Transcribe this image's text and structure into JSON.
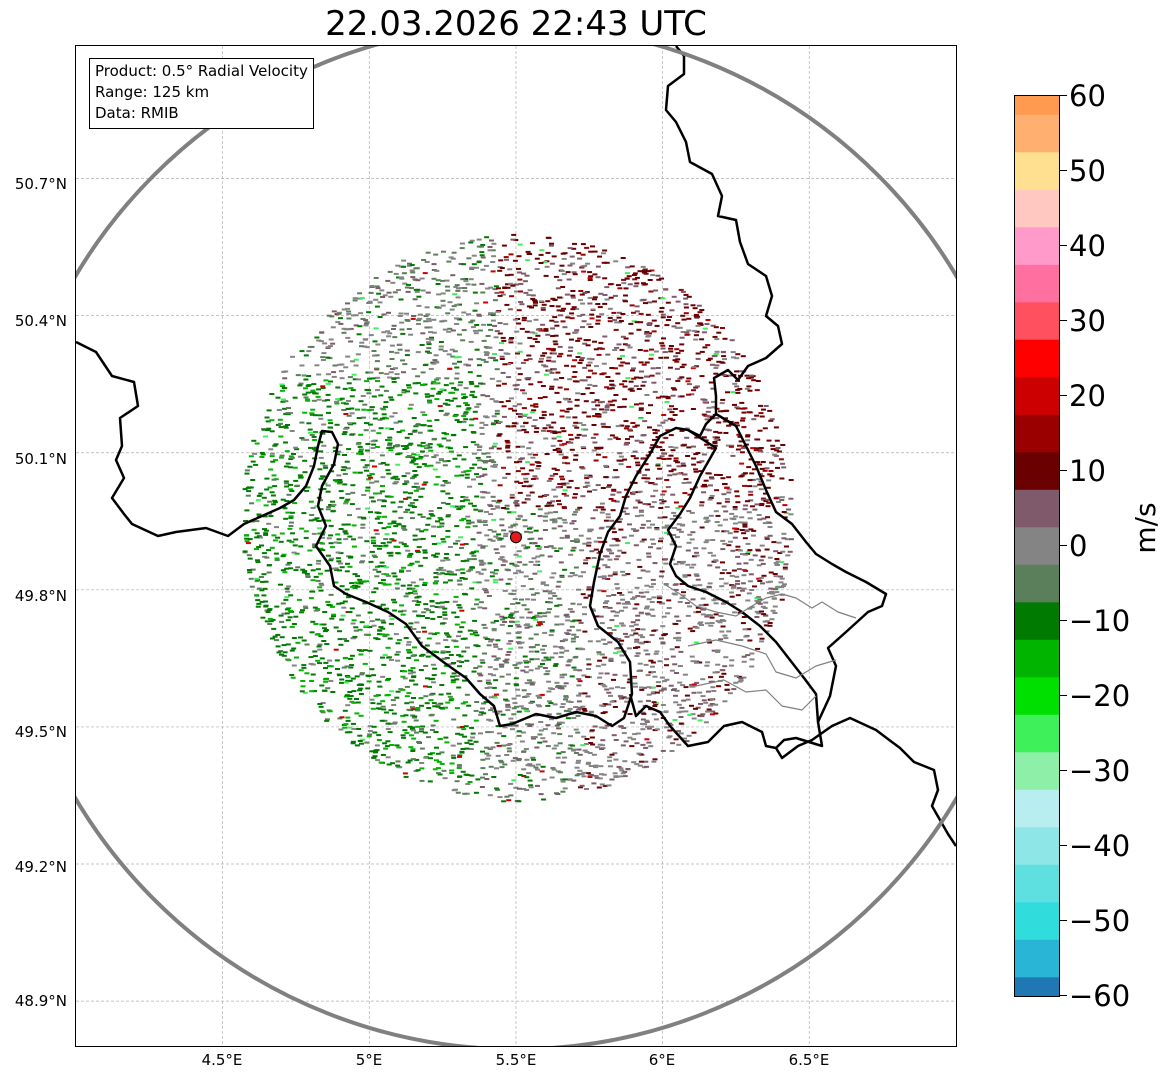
{
  "title": "22.03.2026 22:43 UTC",
  "info_box": {
    "product": "Product: 0.5° Radial Velocity",
    "range": "Range: 125 km",
    "data": "Data: RMIB"
  },
  "map": {
    "lat_labels": [
      "50.7°N",
      "50.4°N",
      "50.1°N",
      "49.8°N",
      "49.5°N",
      "49.2°N",
      "48.9°N"
    ],
    "lon_labels": [
      "4.5°E",
      "5°E",
      "5.5°E",
      "6°E",
      "6.5°E"
    ],
    "radar_site": {
      "lon": 5.5,
      "lat": 49.915
    },
    "range_ring_color": "#808080",
    "border_color": "#000000",
    "gridline_color": "#b0b0b0",
    "radar_marker_color": "#e41a1c"
  },
  "colorbar": {
    "unit": "m/s",
    "min": -60,
    "max": 60,
    "ticks": [
      "60",
      "50",
      "40",
      "30",
      "20",
      "10",
      "0",
      "−10",
      "−20",
      "−30",
      "−40",
      "−50",
      "−60"
    ],
    "colors": {
      "-60": "#1f77b4",
      "-55": "#29b6d6",
      "-50": "#30dcdc",
      "-45": "#5fe0e0",
      "-40": "#8ee6e6",
      "-35": "#b8eef0",
      "-30": "#8ef0a8",
      "-25": "#3ef05a",
      "-20": "#00e000",
      "-15": "#00b400",
      "-10": "#007a00",
      "-5": "#5a7f5a",
      "0": "#848484",
      "5": "#7e5a6a",
      "10": "#6a0000",
      "15": "#9a0000",
      "20": "#cc0000",
      "25": "#ff0000",
      "30": "#ff5060",
      "35": "#ff70a0",
      "40": "#ff9acb",
      "45": "#ffc8c0",
      "50": "#ffdf90",
      "55": "#ffb070",
      "60": "#ff9a50"
    }
  }
}
